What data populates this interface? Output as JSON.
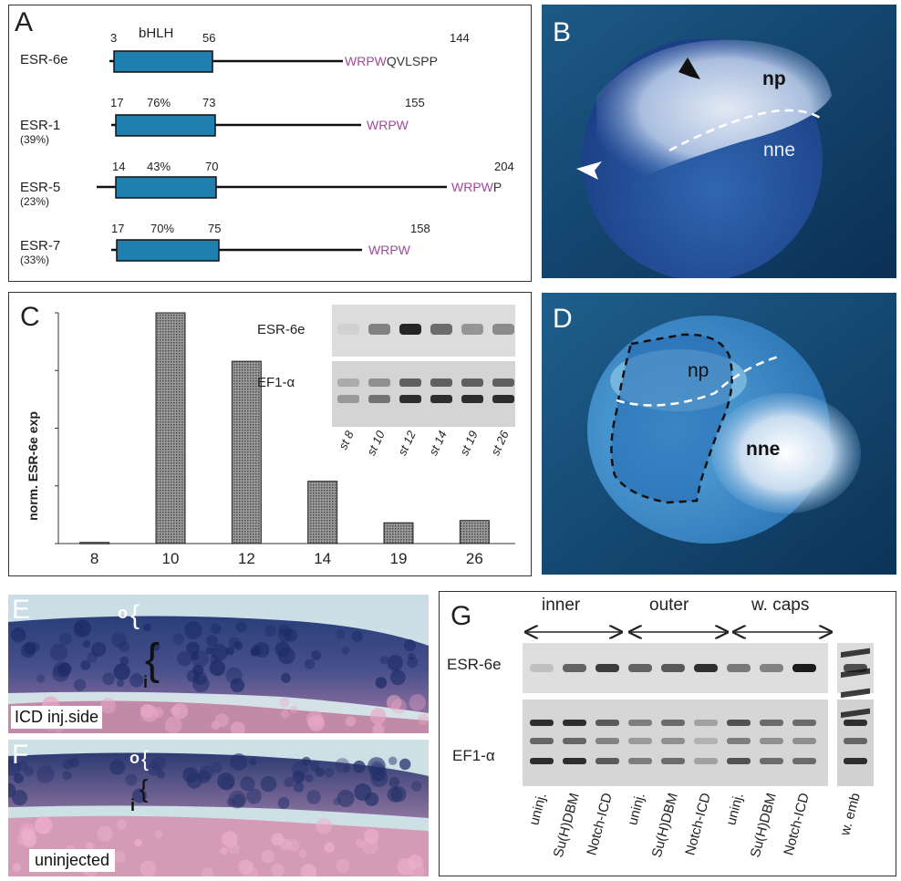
{
  "panels": {
    "a": {
      "letter": "A",
      "domain_label": "bHLH",
      "proteins": [
        {
          "name": "ESR-6e",
          "identity": "",
          "start": "3",
          "end": "56",
          "pct": "",
          "length": "144",
          "motif": "WRPW",
          "tail": "QVLSPP"
        },
        {
          "name": "ESR-1",
          "identity": "(39%)",
          "start": "17",
          "end": "73",
          "pct": "76%",
          "length": "155",
          "motif": "WRPW",
          "tail": ""
        },
        {
          "name": "ESR-5",
          "identity": "(23%)",
          "start": "14",
          "end": "70",
          "pct": "43%",
          "length": "204",
          "motif": "WRPW",
          "tail": "P"
        },
        {
          "name": "ESR-7",
          "identity": "(33%)",
          "start": "17",
          "end": "75",
          "pct": "70%",
          "length": "158",
          "motif": "WRPW",
          "tail": ""
        }
      ]
    },
    "b": {
      "letter": "B",
      "np": "np",
      "nne": "nne"
    },
    "c": {
      "letter": "C",
      "blot_labels": [
        "ESR-6e",
        "EF1-α"
      ],
      "lane_labels": [
        "st 8",
        "st 10",
        "st 12",
        "st 14",
        "st 19",
        "st 26"
      ]
    },
    "d": {
      "letter": "D",
      "np": "np",
      "nne": "nne"
    },
    "e": {
      "letter": "E",
      "o": "o",
      "i": "i",
      "caption": "ICD inj.side"
    },
    "f": {
      "letter": "F",
      "o": "o",
      "i": "i",
      "caption": "uninjected"
    },
    "g": {
      "letter": "G",
      "groups": [
        "inner",
        "outer",
        "w. caps"
      ],
      "row_labels": [
        "ESR-6e",
        "EF1-α"
      ],
      "lanes": [
        "uninj.",
        "Su(H)DBM",
        "Notch-ICD",
        "uninj.",
        "Su(H)DBM",
        "Notch-ICD",
        "uninj.",
        "Su(H)DBM",
        "Notch-ICD",
        "w. emb"
      ]
    }
  },
  "chart_data": {
    "type": "bar",
    "title": "",
    "xlabel": "",
    "ylabel": "norm. ESR-6e exp",
    "categories": [
      "8",
      "10",
      "12",
      "14",
      "19",
      "26"
    ],
    "values": [
      0.5,
      100,
      79,
      27,
      9,
      10
    ],
    "ylim": [
      0,
      100
    ],
    "grid": false,
    "legend": "none"
  }
}
